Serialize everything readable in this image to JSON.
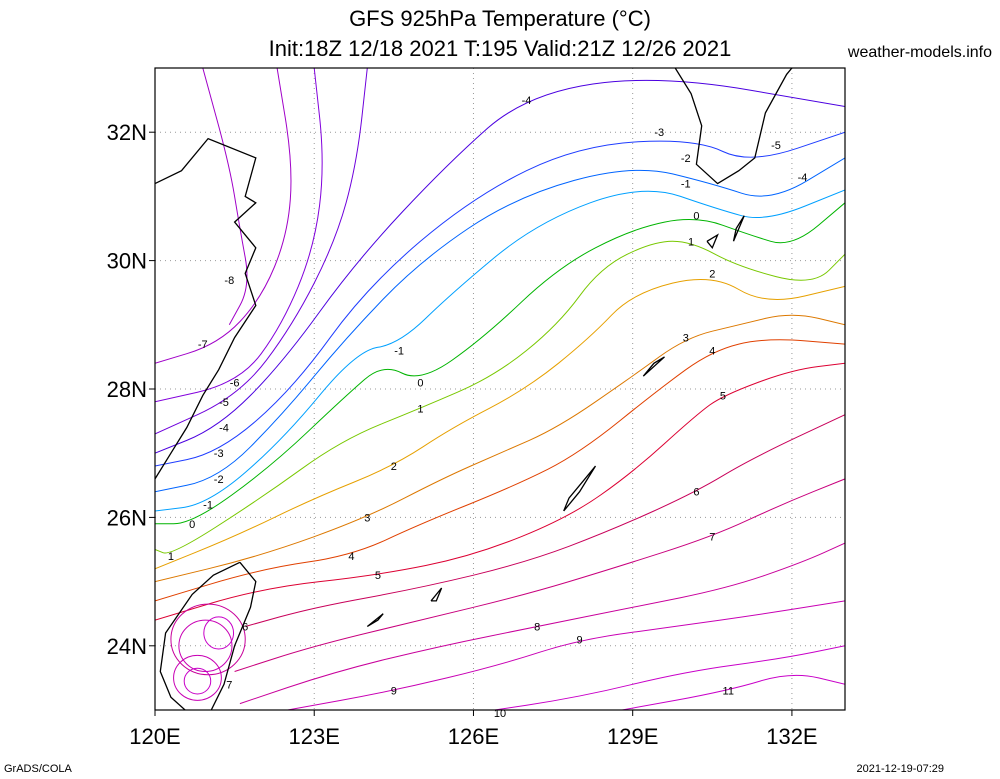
{
  "title": {
    "line1": "GFS 925hPa Temperature (°C)",
    "line2": "Init:18Z 12/18 2021 T:195 Valid:21Z 12/26 2021",
    "site": "weather-models.info"
  },
  "footer": {
    "left": "GrADS/COLA",
    "right": "2021-12-19-07:29"
  },
  "map": {
    "lon_range": [
      120,
      133
    ],
    "lat_range": [
      23,
      33
    ],
    "x_ticks": [
      "120E",
      "123E",
      "126E",
      "129E",
      "132E"
    ],
    "y_ticks": [
      "24N",
      "26N",
      "28N",
      "30N",
      "32N"
    ],
    "grid": "dotted",
    "contour_labels": [
      {
        "text": "-8",
        "lon": 121.4,
        "lat": 29.7
      },
      {
        "text": "-7",
        "lon": 120.9,
        "lat": 28.7
      },
      {
        "text": "-6",
        "lon": 121.5,
        "lat": 28.1
      },
      {
        "text": "-5",
        "lon": 121.3,
        "lat": 27.8
      },
      {
        "text": "-4",
        "lon": 121.3,
        "lat": 27.4
      },
      {
        "text": "-3",
        "lon": 121.2,
        "lat": 27.0
      },
      {
        "text": "-2",
        "lon": 121.2,
        "lat": 26.6
      },
      {
        "text": "-1",
        "lon": 121.0,
        "lat": 26.2
      },
      {
        "text": "0",
        "lon": 120.7,
        "lat": 25.9
      },
      {
        "text": "1",
        "lon": 120.3,
        "lat": 25.4
      },
      {
        "text": "-1",
        "lon": 124.6,
        "lat": 28.6
      },
      {
        "text": "0",
        "lon": 125.0,
        "lat": 28.1
      },
      {
        "text": "1",
        "lon": 125.0,
        "lat": 27.7
      },
      {
        "text": "2",
        "lon": 124.5,
        "lat": 26.8
      },
      {
        "text": "3",
        "lon": 124.0,
        "lat": 26.0
      },
      {
        "text": "4",
        "lon": 123.7,
        "lat": 25.4
      },
      {
        "text": "5",
        "lon": 124.2,
        "lat": 25.1
      },
      {
        "text": "6",
        "lon": 121.7,
        "lat": 24.3
      },
      {
        "text": "7",
        "lon": 121.4,
        "lat": 23.4
      },
      {
        "text": "8",
        "lon": 127.2,
        "lat": 24.3
      },
      {
        "text": "9",
        "lon": 128.0,
        "lat": 24.1
      },
      {
        "text": "9",
        "lon": 124.5,
        "lat": 23.3
      },
      {
        "text": "10",
        "lon": 126.5,
        "lat": 22.95
      },
      {
        "text": "11",
        "lon": 130.8,
        "lat": 23.3
      },
      {
        "text": "-4",
        "lon": 127.0,
        "lat": 32.5
      },
      {
        "text": "-3",
        "lon": 129.5,
        "lat": 32.0
      },
      {
        "text": "-2",
        "lon": 130.0,
        "lat": 31.6
      },
      {
        "text": "-1",
        "lon": 130.0,
        "lat": 31.2
      },
      {
        "text": "0",
        "lon": 130.2,
        "lat": 30.7
      },
      {
        "text": "1",
        "lon": 130.1,
        "lat": 30.3
      },
      {
        "text": "2",
        "lon": 130.5,
        "lat": 29.8
      },
      {
        "text": "3",
        "lon": 130.0,
        "lat": 28.8
      },
      {
        "text": "4",
        "lon": 130.5,
        "lat": 28.6
      },
      {
        "text": "5",
        "lon": 130.7,
        "lat": 27.9
      },
      {
        "text": "6",
        "lon": 130.2,
        "lat": 26.4
      },
      {
        "text": "7",
        "lon": 130.5,
        "lat": 25.7
      },
      {
        "text": "-5",
        "lon": 131.7,
        "lat": 31.8
      },
      {
        "text": "-4",
        "lon": 132.2,
        "lat": 31.3
      }
    ]
  },
  "colors": {
    "m8": "#a000c8",
    "m7": "#a000c8",
    "m6": "#8200dc",
    "m5": "#6e00dc",
    "m4": "#4b00e0",
    "m3": "#1e3cff",
    "m2": "#0064ff",
    "m1": "#00a0ff",
    "z0": "#00c8c8",
    "p0": "#00b400",
    "p1": "#78c800",
    "p2": "#e6a000",
    "p3": "#dc7800",
    "p4": "#e04000",
    "p5": "#dc0032",
    "p6": "#c8005a",
    "p7": "#c8007d",
    "p8": "#c8009b",
    "p9": "#c800b4",
    "p10": "#c800c8"
  }
}
